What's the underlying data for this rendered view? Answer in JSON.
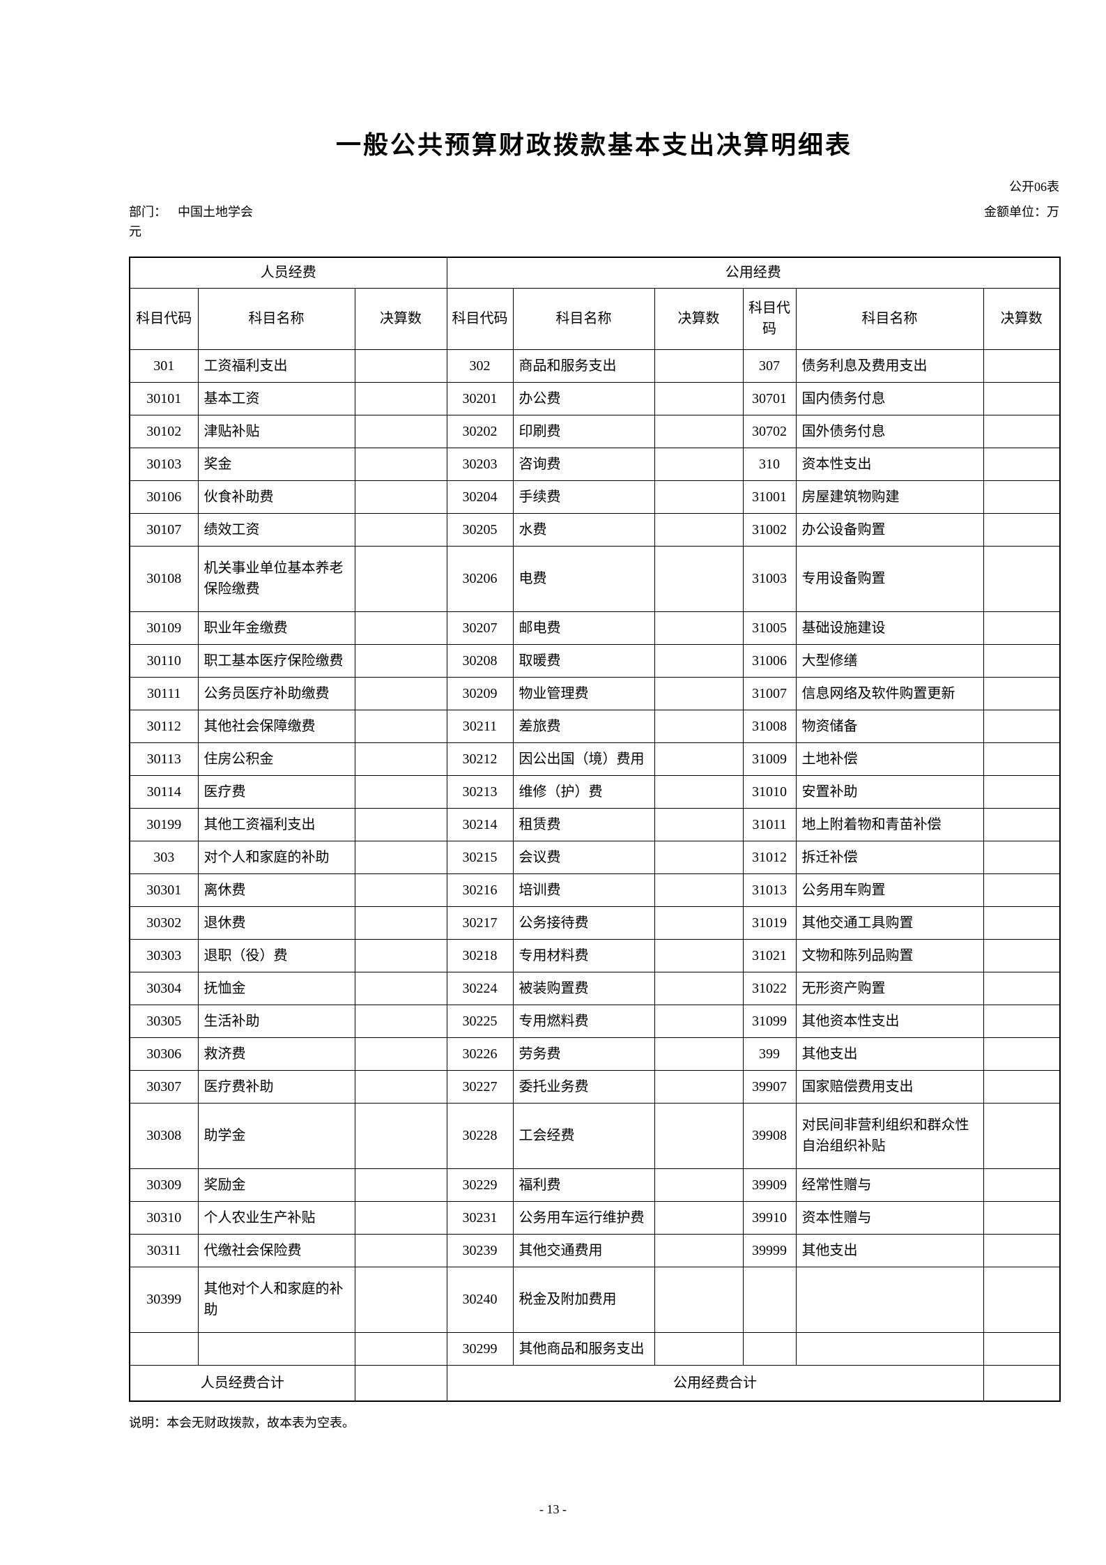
{
  "page": {
    "title": "一般公共预算财政拨款基本支出决算明细表",
    "form_code": "公开06表",
    "department_label": "部门：",
    "department_value": "中国土地学会",
    "unit_label": "金额单位：万",
    "unit_wrap": "元",
    "note": "说明：本会无财政拨款，故本表为空表。",
    "page_number": "- 13 -"
  },
  "table": {
    "group_headers": {
      "personnel": "人员经费",
      "public": "公用经费"
    },
    "column_headers": {
      "code": "科目代码",
      "name": "科目名称",
      "amount": "决算数"
    },
    "totals": {
      "personnel": "人员经费合计",
      "personnel_amount": "",
      "public": "公用经费合计",
      "public_amount": ""
    },
    "rows": [
      {
        "tall": false,
        "cells": [
          "301",
          "工资福利支出",
          "",
          "302",
          "商品和服务支出",
          "",
          "307",
          "债务利息及费用支出",
          ""
        ]
      },
      {
        "tall": false,
        "cells": [
          "30101",
          "基本工资",
          "",
          "30201",
          "办公费",
          "",
          "30701",
          "国内债务付息",
          ""
        ]
      },
      {
        "tall": false,
        "cells": [
          "30102",
          "津贴补贴",
          "",
          "30202",
          "印刷费",
          "",
          "30702",
          "国外债务付息",
          ""
        ]
      },
      {
        "tall": false,
        "cells": [
          "30103",
          "奖金",
          "",
          "30203",
          "咨询费",
          "",
          "310",
          "资本性支出",
          ""
        ]
      },
      {
        "tall": false,
        "cells": [
          "30106",
          "伙食补助费",
          "",
          "30204",
          "手续费",
          "",
          "31001",
          "房屋建筑物购建",
          ""
        ]
      },
      {
        "tall": false,
        "cells": [
          "30107",
          "绩效工资",
          "",
          "30205",
          "水费",
          "",
          "31002",
          "办公设备购置",
          ""
        ]
      },
      {
        "tall": true,
        "cells": [
          "30108",
          "机关事业单位基本养老保险缴费",
          "",
          "30206",
          "电费",
          "",
          "31003",
          "专用设备购置",
          ""
        ]
      },
      {
        "tall": false,
        "cells": [
          "30109",
          "职业年金缴费",
          "",
          "30207",
          "邮电费",
          "",
          "31005",
          "基础设施建设",
          ""
        ]
      },
      {
        "tall": false,
        "cells": [
          "30110",
          "职工基本医疗保险缴费",
          "",
          "30208",
          "取暖费",
          "",
          "31006",
          "大型修缮",
          ""
        ]
      },
      {
        "tall": false,
        "cells": [
          "30111",
          "公务员医疗补助缴费",
          "",
          "30209",
          "物业管理费",
          "",
          "31007",
          "信息网络及软件购置更新",
          ""
        ]
      },
      {
        "tall": false,
        "cells": [
          "30112",
          "其他社会保障缴费",
          "",
          "30211",
          "差旅费",
          "",
          "31008",
          "物资储备",
          ""
        ]
      },
      {
        "tall": false,
        "cells": [
          "30113",
          "住房公积金",
          "",
          "30212",
          "因公出国（境）费用",
          "",
          "31009",
          "土地补偿",
          ""
        ]
      },
      {
        "tall": false,
        "cells": [
          "30114",
          "医疗费",
          "",
          "30213",
          "维修（护）费",
          "",
          "31010",
          "安置补助",
          ""
        ]
      },
      {
        "tall": false,
        "cells": [
          "30199",
          "其他工资福利支出",
          "",
          "30214",
          "租赁费",
          "",
          "31011",
          "地上附着物和青苗补偿",
          ""
        ]
      },
      {
        "tall": false,
        "cells": [
          "303",
          "对个人和家庭的补助",
          "",
          "30215",
          "会议费",
          "",
          "31012",
          "拆迁补偿",
          ""
        ]
      },
      {
        "tall": false,
        "cells": [
          "30301",
          "离休费",
          "",
          "30216",
          "培训费",
          "",
          "31013",
          "公务用车购置",
          ""
        ]
      },
      {
        "tall": false,
        "cells": [
          "30302",
          "退休费",
          "",
          "30217",
          "公务接待费",
          "",
          "31019",
          "其他交通工具购置",
          ""
        ]
      },
      {
        "tall": false,
        "cells": [
          "30303",
          "退职（役）费",
          "",
          "30218",
          "专用材料费",
          "",
          "31021",
          "文物和陈列品购置",
          ""
        ]
      },
      {
        "tall": false,
        "cells": [
          "30304",
          "抚恤金",
          "",
          "30224",
          "被装购置费",
          "",
          "31022",
          "无形资产购置",
          ""
        ]
      },
      {
        "tall": false,
        "cells": [
          "30305",
          "生活补助",
          "",
          "30225",
          "专用燃料费",
          "",
          "31099",
          "其他资本性支出",
          ""
        ]
      },
      {
        "tall": false,
        "cells": [
          "30306",
          "救济费",
          "",
          "30226",
          "劳务费",
          "",
          "399",
          "其他支出",
          ""
        ]
      },
      {
        "tall": false,
        "cells": [
          "30307",
          "医疗费补助",
          "",
          "30227",
          "委托业务费",
          "",
          "39907",
          "国家赔偿费用支出",
          ""
        ]
      },
      {
        "tall": true,
        "cells": [
          "30308",
          "助学金",
          "",
          "30228",
          "工会经费",
          "",
          "39908",
          "对民间非营利组织和群众性自治组织补贴",
          ""
        ]
      },
      {
        "tall": false,
        "cells": [
          "30309",
          "奖励金",
          "",
          "30229",
          "福利费",
          "",
          "39909",
          "经常性赠与",
          ""
        ]
      },
      {
        "tall": false,
        "cells": [
          "30310",
          "个人农业生产补贴",
          "",
          "30231",
          "公务用车运行维护费",
          "",
          "39910",
          "资本性赠与",
          ""
        ]
      },
      {
        "tall": false,
        "cells": [
          "30311",
          "代缴社会保险费",
          "",
          "30239",
          "其他交通费用",
          "",
          "39999",
          "其他支出",
          ""
        ]
      },
      {
        "tall": true,
        "cells": [
          "30399",
          "其他对个人和家庭的补助",
          "",
          "30240",
          "税金及附加费用",
          "",
          "",
          "",
          ""
        ]
      },
      {
        "tall": false,
        "cells": [
          "",
          "",
          "",
          "30299",
          "其他商品和服务支出",
          "",
          "",
          "",
          ""
        ]
      }
    ]
  }
}
